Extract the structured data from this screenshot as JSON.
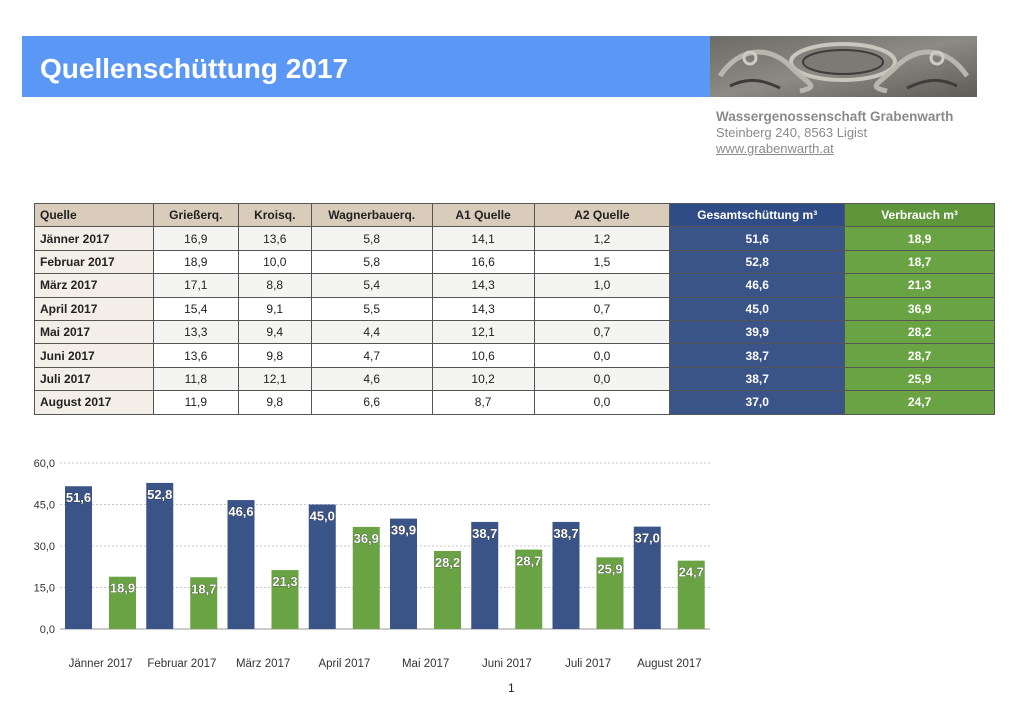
{
  "header": {
    "title": "Quellenschüttung 2017"
  },
  "org": {
    "name": "Wassergenossenschaft Grabenwarth",
    "address": "Steinberg 240, 8563 Ligist",
    "website": "www.grabenwarth.at"
  },
  "table": {
    "headers": [
      "Quelle",
      "Grießerq.",
      "Kroisq.",
      "Wagnerbauerq.",
      "A1 Quelle",
      "A2 Quelle",
      "Gesamtschüttung m³",
      "Verbrauch m³"
    ],
    "rows": [
      [
        "Jänner 2017",
        "16,9",
        "13,6",
        "5,8",
        "14,1",
        "1,2",
        "51,6",
        "18,9"
      ],
      [
        "Februar 2017",
        "18,9",
        "10,0",
        "5,8",
        "16,6",
        "1,5",
        "52,8",
        "18,7"
      ],
      [
        "März 2017",
        "17,1",
        "8,8",
        "5,4",
        "14,3",
        "1,0",
        "46,6",
        "21,3"
      ],
      [
        "April 2017",
        "15,4",
        "9,1",
        "5,5",
        "14,3",
        "0,7",
        "45,0",
        "36,9"
      ],
      [
        "Mai 2017",
        "13,3",
        "9,4",
        "4,4",
        "12,1",
        "0,7",
        "39,9",
        "28,2"
      ],
      [
        "Juni 2017",
        "13,6",
        "9,8",
        "4,7",
        "10,6",
        "0,0",
        "38,7",
        "28,7"
      ],
      [
        "Juli 2017",
        "11,8",
        "12,1",
        "4,6",
        "10,2",
        "0,0",
        "38,7",
        "25,9"
      ],
      [
        "August 2017",
        "11,9",
        "9,8",
        "6,6",
        "8,7",
        "0,0",
        "37,0",
        "24,7"
      ]
    ]
  },
  "chart_data": {
    "type": "bar",
    "categories": [
      "Jänner 2017",
      "Februar 2017",
      "März 2017",
      "April 2017",
      "Mai 2017",
      "Juni 2017",
      "Juli 2017",
      "August 2017"
    ],
    "series": [
      {
        "values": [
          51.6,
          52.8,
          46.6,
          45.0,
          39.9,
          38.7,
          38.7,
          37.0
        ],
        "labels": [
          "51,6",
          "52,8",
          "46,6",
          "45,0",
          "39,9",
          "38,7",
          "38,7",
          "37,0"
        ],
        "color": "#3a5488"
      },
      {
        "values": [
          18.9,
          18.7,
          21.3,
          36.9,
          28.2,
          28.7,
          25.9,
          24.7
        ],
        "labels": [
          "18,9",
          "18,7",
          "21,3",
          "36,9",
          "28,2",
          "28,7",
          "25,9",
          "24,7"
        ],
        "color": "#6aa343"
      }
    ],
    "yticks": [
      "0,0",
      "15,0",
      "30,0",
      "45,0",
      "60,0"
    ],
    "ylim": [
      0,
      60
    ],
    "grid": true,
    "title": "",
    "xlabel": "",
    "ylabel": ""
  },
  "footer": {
    "page": "1"
  }
}
